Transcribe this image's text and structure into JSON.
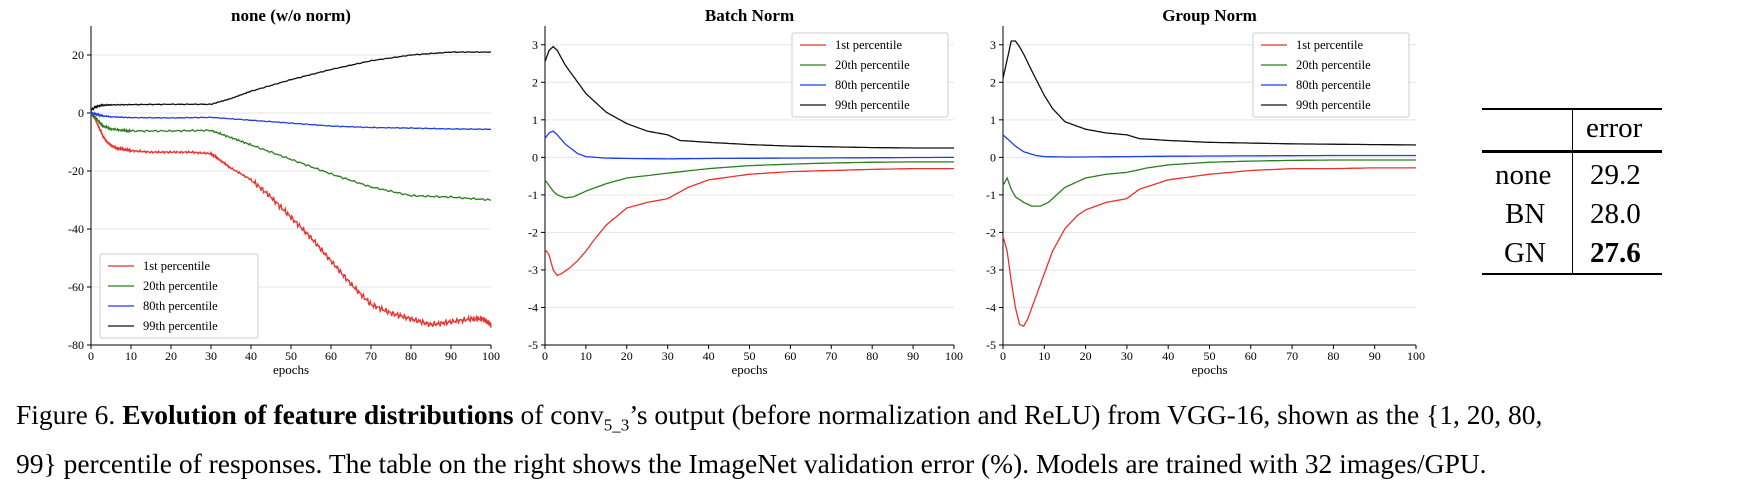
{
  "chart_data": [
    {
      "type": "line",
      "title": "none (w/o norm)",
      "xlabel": "epochs",
      "ylabel": "",
      "xlim": [
        0,
        100
      ],
      "ylim": [
        -80,
        30
      ],
      "xticks": [
        0,
        10,
        20,
        30,
        40,
        50,
        60,
        70,
        80,
        90,
        100
      ],
      "yticks": [
        -80,
        -60,
        -40,
        -20,
        0,
        20
      ],
      "grid": "horizontal",
      "legend": "bottom-left",
      "series": [
        {
          "name": "1st percentile",
          "color": "#e8322b",
          "x": [
            0,
            1,
            2,
            3,
            4,
            5,
            6,
            8,
            10,
            15,
            20,
            25,
            30,
            32,
            35,
            40,
            45,
            50,
            55,
            60,
            65,
            70,
            75,
            80,
            85,
            90,
            95,
            98,
            100
          ],
          "y": [
            0,
            -2,
            -5,
            -8,
            -10,
            -11,
            -12,
            -12.5,
            -13,
            -13.5,
            -13.5,
            -13.5,
            -14,
            -16,
            -19,
            -23,
            -29,
            -36,
            -43,
            -51,
            -59,
            -66,
            -69,
            -71,
            -73,
            -72,
            -71,
            -71,
            -73
          ]
        },
        {
          "name": "20th percentile",
          "color": "#2e7d1f",
          "x": [
            0,
            1,
            2,
            3,
            5,
            8,
            10,
            20,
            30,
            35,
            40,
            50,
            60,
            70,
            80,
            90,
            100
          ],
          "y": [
            0,
            -1.5,
            -3,
            -4.5,
            -5.5,
            -6,
            -6.2,
            -6.2,
            -6,
            -8.5,
            -11,
            -16,
            -21,
            -25.5,
            -28.5,
            -29,
            -30
          ]
        },
        {
          "name": "80th percentile",
          "color": "#1f3fe8",
          "x": [
            0,
            1,
            2,
            3,
            5,
            10,
            20,
            30,
            40,
            50,
            60,
            70,
            80,
            90,
            100
          ],
          "y": [
            0,
            -0.3,
            -0.7,
            -1,
            -1.3,
            -1.6,
            -1.7,
            -1.5,
            -2.5,
            -3.5,
            -4.5,
            -5,
            -5.2,
            -5.5,
            -5.6
          ]
        },
        {
          "name": "99th percentile",
          "color": "#111111",
          "x": [
            0,
            1,
            2,
            3,
            5,
            10,
            20,
            30,
            35,
            40,
            50,
            60,
            70,
            80,
            90,
            100
          ],
          "y": [
            1,
            2,
            2.5,
            2.7,
            2.8,
            2.9,
            3,
            3,
            5,
            7.5,
            11.5,
            15,
            18,
            20,
            21,
            21
          ]
        }
      ]
    },
    {
      "type": "line",
      "title": "Batch Norm",
      "xlabel": "epochs",
      "ylabel": "",
      "xlim": [
        0,
        100
      ],
      "ylim": [
        -5,
        3.5
      ],
      "xticks": [
        0,
        10,
        20,
        30,
        40,
        50,
        60,
        70,
        80,
        90,
        100
      ],
      "yticks": [
        -5,
        -4,
        -3,
        -2,
        -1,
        0,
        1,
        2,
        3
      ],
      "grid": "horizontal",
      "legend": "top-right",
      "series": [
        {
          "name": "1st percentile",
          "color": "#e8322b",
          "x": [
            0,
            1,
            2,
            3,
            4,
            6,
            8,
            10,
            12,
            15,
            20,
            25,
            30,
            35,
            40,
            50,
            60,
            70,
            80,
            90,
            100
          ],
          "y": [
            -2.45,
            -2.6,
            -3.0,
            -3.15,
            -3.1,
            -2.95,
            -2.75,
            -2.5,
            -2.2,
            -1.8,
            -1.35,
            -1.2,
            -1.1,
            -0.8,
            -0.6,
            -0.45,
            -0.38,
            -0.35,
            -0.32,
            -0.3,
            -0.3
          ]
        },
        {
          "name": "20th percentile",
          "color": "#2e7d1f",
          "x": [
            0,
            1,
            2,
            3,
            5,
            7,
            10,
            15,
            20,
            30,
            40,
            50,
            60,
            70,
            80,
            90,
            100
          ],
          "y": [
            -0.6,
            -0.75,
            -0.9,
            -1.0,
            -1.08,
            -1.05,
            -0.9,
            -0.7,
            -0.55,
            -0.42,
            -0.3,
            -0.22,
            -0.18,
            -0.15,
            -0.13,
            -0.12,
            -0.12
          ]
        },
        {
          "name": "80th percentile",
          "color": "#1f3fe8",
          "x": [
            0,
            1,
            2,
            3,
            5,
            8,
            10,
            15,
            20,
            30,
            40,
            60,
            80,
            100
          ],
          "y": [
            0.5,
            0.65,
            0.7,
            0.6,
            0.35,
            0.1,
            0.02,
            -0.02,
            -0.03,
            -0.04,
            -0.03,
            -0.02,
            -0.01,
            0
          ]
        },
        {
          "name": "99th percentile",
          "color": "#111111",
          "x": [
            0,
            1,
            2,
            3,
            5,
            8,
            10,
            15,
            20,
            25,
            30,
            33,
            40,
            50,
            60,
            70,
            80,
            90,
            100
          ],
          "y": [
            2.55,
            2.85,
            2.95,
            2.85,
            2.45,
            2.0,
            1.7,
            1.2,
            0.9,
            0.7,
            0.6,
            0.45,
            0.4,
            0.34,
            0.3,
            0.28,
            0.26,
            0.25,
            0.25
          ]
        }
      ]
    },
    {
      "type": "line",
      "title": "Group Norm",
      "xlabel": "epochs",
      "ylabel": "",
      "xlim": [
        0,
        100
      ],
      "ylim": [
        -5,
        3.5
      ],
      "xticks": [
        0,
        10,
        20,
        30,
        40,
        50,
        60,
        70,
        80,
        90,
        100
      ],
      "yticks": [
        -5,
        -4,
        -3,
        -2,
        -1,
        0,
        1,
        2,
        3
      ],
      "grid": "horizontal",
      "legend": "top-right",
      "series": [
        {
          "name": "1st percentile",
          "color": "#e8322b",
          "x": [
            0,
            1,
            2,
            3,
            4,
            5,
            6,
            8,
            10,
            12,
            15,
            18,
            20,
            25,
            30,
            33,
            40,
            50,
            60,
            70,
            80,
            90,
            100
          ],
          "y": [
            -2.1,
            -2.5,
            -3.3,
            -4.0,
            -4.45,
            -4.5,
            -4.3,
            -3.7,
            -3.1,
            -2.5,
            -1.9,
            -1.55,
            -1.4,
            -1.2,
            -1.1,
            -0.85,
            -0.6,
            -0.45,
            -0.35,
            -0.3,
            -0.3,
            -0.28,
            -0.28
          ]
        },
        {
          "name": "20th percentile",
          "color": "#2e7d1f",
          "x": [
            0,
            1,
            2,
            3,
            5,
            7,
            9,
            11,
            13,
            15,
            20,
            25,
            30,
            35,
            40,
            50,
            60,
            70,
            80,
            90,
            100
          ],
          "y": [
            -0.75,
            -0.55,
            -0.85,
            -1.05,
            -1.2,
            -1.3,
            -1.3,
            -1.2,
            -1.0,
            -0.8,
            -0.55,
            -0.45,
            -0.4,
            -0.28,
            -0.2,
            -0.13,
            -0.1,
            -0.08,
            -0.07,
            -0.07,
            -0.07
          ]
        },
        {
          "name": "80th percentile",
          "color": "#1f3fe8",
          "x": [
            0,
            1,
            2,
            3,
            5,
            8,
            10,
            15,
            20,
            30,
            40,
            60,
            80,
            100
          ],
          "y": [
            0.6,
            0.5,
            0.4,
            0.3,
            0.15,
            0.05,
            0.02,
            0.01,
            0.01,
            0.02,
            0.03,
            0.04,
            0.05,
            0.05
          ]
        },
        {
          "name": "99th percentile",
          "color": "#111111",
          "x": [
            0,
            1,
            2,
            3,
            4,
            5,
            7,
            10,
            12,
            15,
            20,
            25,
            30,
            33,
            40,
            50,
            60,
            70,
            80,
            90,
            100
          ],
          "y": [
            2.1,
            2.6,
            3.1,
            3.1,
            2.95,
            2.75,
            2.3,
            1.65,
            1.3,
            0.95,
            0.75,
            0.65,
            0.6,
            0.5,
            0.45,
            0.4,
            0.38,
            0.36,
            0.35,
            0.34,
            0.33
          ]
        }
      ]
    },
    {
      "type": "table",
      "columns": [
        "",
        "error"
      ],
      "rows": [
        {
          "label": "none",
          "value": "29.2",
          "bold": false
        },
        {
          "label": "BN",
          "value": "28.0",
          "bold": false
        },
        {
          "label": "GN",
          "value": "27.6",
          "bold": true
        }
      ]
    }
  ],
  "caption": {
    "figure_label": "Figure 6.",
    "bold_phrase": "Evolution of feature distributions",
    "text_1": " of conv",
    "subscript": "5_3",
    "text_2": "’s output (before normalization and ReLU) from VGG-16, shown as the {1, 20, 80,",
    "line_2": "99} percentile of responses. The table on the right shows the ImageNet validation error (%). Models are trained with 32 images/GPU."
  }
}
